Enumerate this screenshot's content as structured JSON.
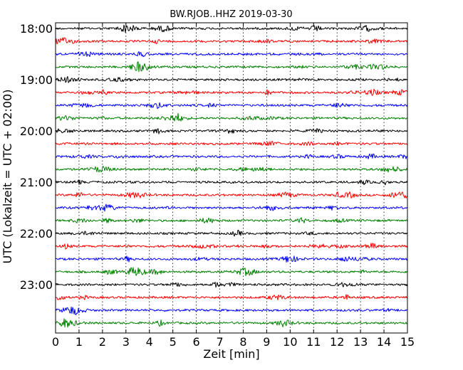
{
  "chart_data": {
    "type": "line",
    "title": "BW.RJOB..HHZ 2019-03-30",
    "xlabel": "Zeit  [min]",
    "ylabel": "UTC (Lokalzeit = UTC + 02:00)",
    "xlim": [
      0,
      15
    ],
    "x_ticks": [
      "0",
      "1",
      "2",
      "3",
      "4",
      "5",
      "6",
      "7",
      "8",
      "9",
      "10",
      "11",
      "12",
      "13",
      "14",
      "15"
    ],
    "y_ticks": [
      "18:00",
      "19:00",
      "20:00",
      "21:00",
      "22:00",
      "23:00"
    ],
    "grid": "vertical dotted",
    "trace_colors": [
      "#000000",
      "#ff0000",
      "#0000ff",
      "#008000"
    ],
    "series": [
      {
        "start": "18:00"
      },
      {
        "start": "18:15"
      },
      {
        "start": "18:30"
      },
      {
        "start": "18:45"
      },
      {
        "start": "19:00"
      },
      {
        "start": "19:15"
      },
      {
        "start": "19:30"
      },
      {
        "start": "19:45"
      },
      {
        "start": "20:00"
      },
      {
        "start": "20:15"
      },
      {
        "start": "20:30"
      },
      {
        "start": "20:45"
      },
      {
        "start": "21:00"
      },
      {
        "start": "21:15"
      },
      {
        "start": "21:30"
      },
      {
        "start": "21:45"
      },
      {
        "start": "22:00"
      },
      {
        "start": "22:15"
      },
      {
        "start": "22:30"
      },
      {
        "start": "22:45"
      },
      {
        "start": "23:00"
      },
      {
        "start": "23:15"
      },
      {
        "start": "23:30"
      },
      {
        "start": "23:45"
      }
    ]
  }
}
